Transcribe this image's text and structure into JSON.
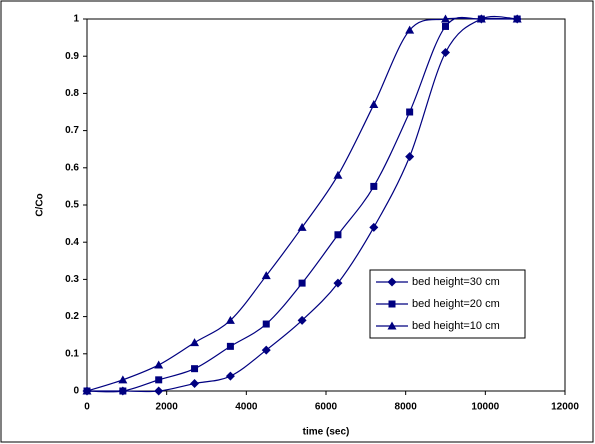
{
  "chart_data": {
    "type": "line",
    "xlabel": "time (sec)",
    "ylabel": "C/Co",
    "x": [
      0,
      900,
      1800,
      2700,
      3600,
      4500,
      5400,
      6300,
      7200,
      8100,
      9000,
      9900,
      10800
    ],
    "series": [
      {
        "name": "bed height=30 cm",
        "color": "#000080",
        "marker": "diamond",
        "values": [
          0,
          0,
          0,
          0.02,
          0.04,
          0.11,
          0.19,
          0.29,
          0.44,
          0.63,
          0.91,
          1.0,
          1.0
        ]
      },
      {
        "name": "bed height=20 cm",
        "color": "#000080",
        "marker": "square",
        "values": [
          0,
          0,
          0.03,
          0.06,
          0.12,
          0.18,
          0.29,
          0.42,
          0.55,
          0.75,
          0.98,
          1.0,
          1.0
        ]
      },
      {
        "name": "bed height=10 cm",
        "color": "#000080",
        "marker": "triangle",
        "values": [
          0,
          0.03,
          0.07,
          0.13,
          0.19,
          0.31,
          0.44,
          0.58,
          0.77,
          0.97,
          1.0,
          1.0,
          1.0
        ]
      }
    ],
    "xlim": [
      0,
      12000
    ],
    "xticks": [
      0,
      2000,
      4000,
      6000,
      8000,
      10000,
      12000
    ],
    "ylim": [
      0,
      1
    ],
    "yticks": [
      0,
      0.1,
      0.2,
      0.3,
      0.4,
      0.5,
      0.6,
      0.7,
      0.8,
      0.9,
      1
    ],
    "legend": "lower-right",
    "grid": false
  }
}
